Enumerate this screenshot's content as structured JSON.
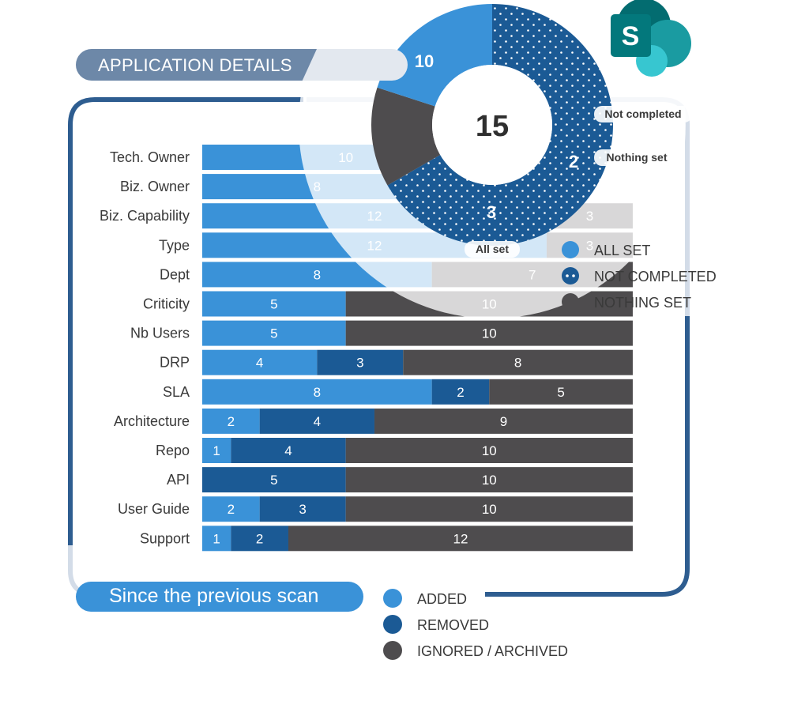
{
  "header": {
    "title": "APPLICATION DETAILS"
  },
  "footer": {
    "title": "Since the previous scan"
  },
  "colors": {
    "added": "#3a92d8",
    "removed": "#1b5a95",
    "ignored": "#4e4c4e",
    "frame_dark": "#2e5d90",
    "frame_light": "#d3dce8"
  },
  "logo": {
    "name": "sharepoint-logo",
    "letter": "S"
  },
  "chart_data": [
    {
      "type": "bar",
      "stacked": true,
      "orientation": "horizontal",
      "categories": [
        "Tech. Owner",
        "Biz. Owner",
        "Biz. Capability",
        "Type",
        "Dept",
        "Criticity",
        "Nb Users",
        "DRP",
        "SLA",
        "Architecture",
        "Repo",
        "API",
        "User Guide",
        "Support"
      ],
      "series": [
        {
          "name": "ADDED",
          "color": "#3a92d8",
          "values": [
            10,
            8,
            12,
            12,
            8,
            5,
            5,
            4,
            8,
            2,
            1,
            0,
            2,
            1
          ]
        },
        {
          "name": "REMOVED",
          "color": "#1b5a95",
          "values": [
            0,
            0,
            0,
            0,
            0,
            0,
            0,
            3,
            2,
            4,
            4,
            5,
            3,
            2
          ]
        },
        {
          "name": "IGNORED / ARCHIVED",
          "color": "#4e4c4e",
          "values": [
            0,
            0,
            3,
            3,
            7,
            10,
            10,
            8,
            5,
            9,
            10,
            10,
            10,
            12
          ]
        }
      ],
      "legend": "bottom",
      "grid": false
    },
    {
      "type": "pie",
      "donut": true,
      "center_label": "15",
      "slices": [
        {
          "name": "Not completed",
          "legend": "NOT COMPLETED",
          "value": 10,
          "color": "#1b5a95",
          "pattern": "dots"
        },
        {
          "name": "Nothing set",
          "legend": "NOTHING SET",
          "value": 2,
          "color": "#4e4c4e"
        },
        {
          "name": "All set",
          "legend": "ALL SET",
          "value": 3,
          "color": "#3a92d8"
        }
      ],
      "legend_order": [
        "ALL SET",
        "NOT COMPLETED",
        "NOTHING SET"
      ]
    }
  ]
}
